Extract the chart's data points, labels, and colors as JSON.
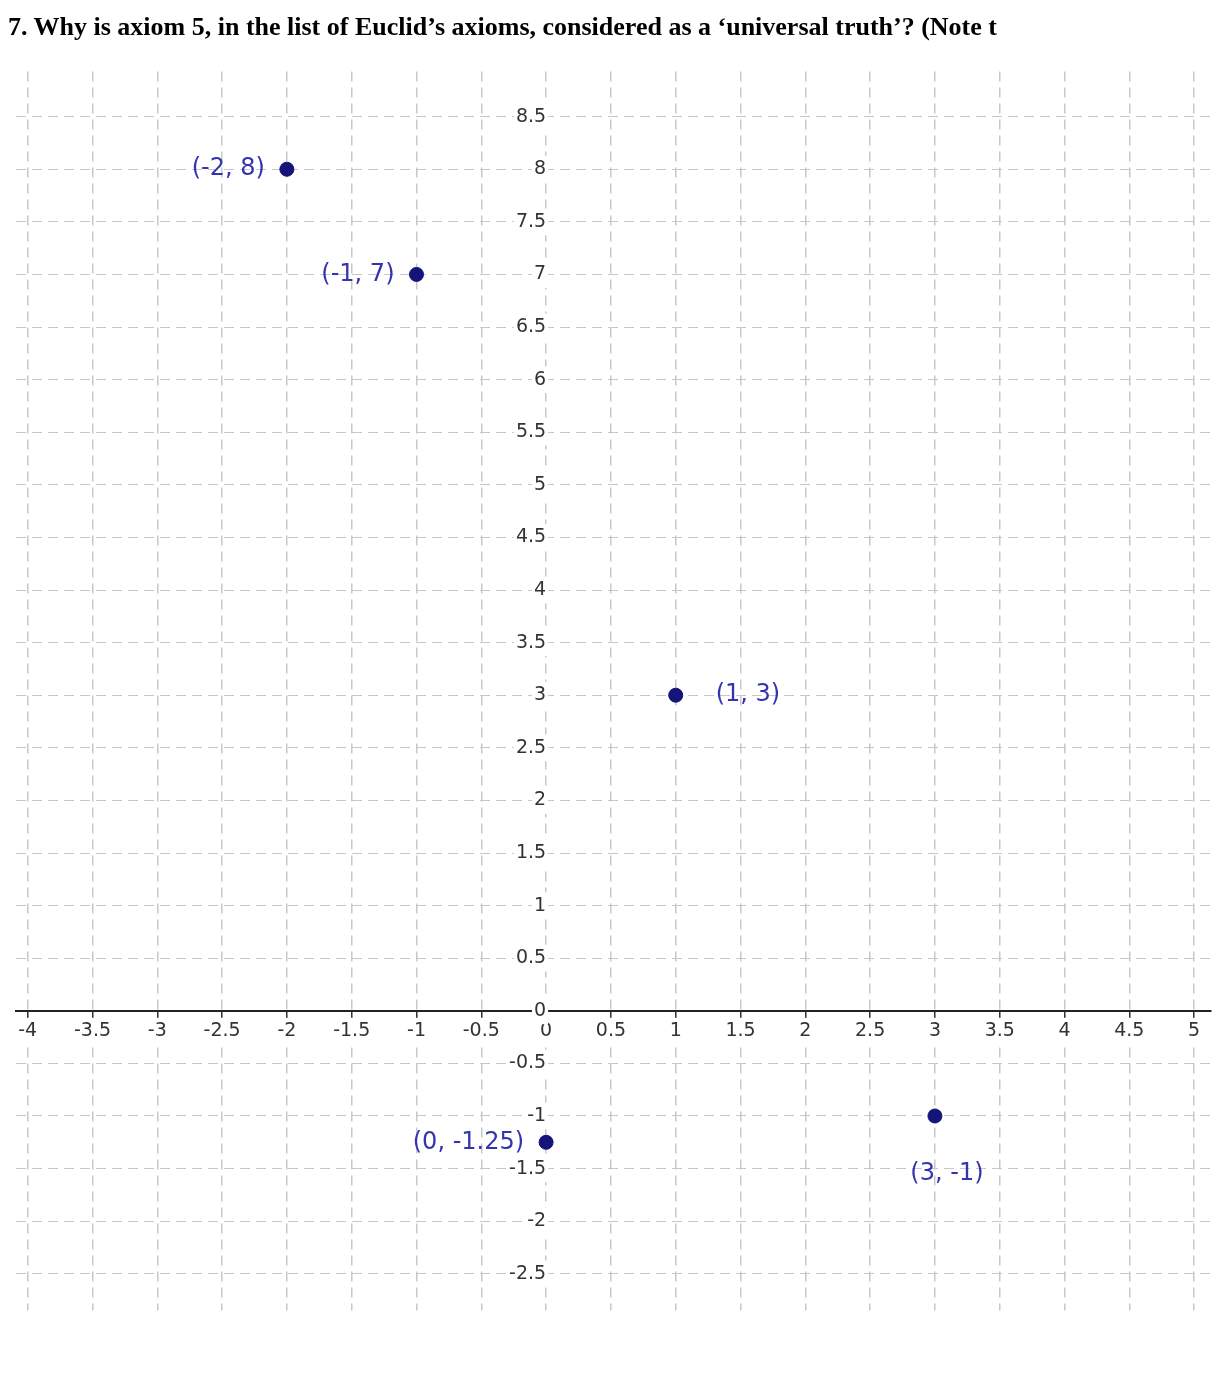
{
  "chart_data": {
    "type": "scatter",
    "annotations": [
      "7. Why is axiom 5, in the list of Euclid’s axioms, considered as a ‘universal truth’? (Note t"
    ],
    "x": [
      -2,
      -1,
      1,
      0,
      3
    ],
    "series": [
      {
        "color": "#14147a",
        "values": [
          8,
          7,
          3,
          -1.25,
          -1
        ],
        "value_labels": [
          "(-2, 8)",
          "(-1, 7)",
          "(1, 3)",
          "(0, -1.25)",
          "(3, -1)"
        ]
      }
    ],
    "xlim": [
      -4.09,
      5.13
    ],
    "ylim": [
      -2.85,
      8.93
    ],
    "xticks": [
      -4,
      -3.5,
      -3,
      -2.5,
      -2,
      -1.5,
      -1,
      -0.5,
      0,
      0.5,
      1,
      1.5,
      2,
      2.5,
      3,
      3.5,
      4,
      4.5,
      5
    ],
    "yticks": [
      -2.5,
      -2,
      -1.5,
      -1,
      -0.5,
      0,
      0.5,
      1,
      1.5,
      2,
      2.5,
      3,
      3.5,
      4,
      4.5,
      5,
      5.5,
      6,
      6.5,
      7,
      7.5,
      8,
      8.5
    ],
    "grid": true,
    "marker": "circle",
    "legend": false
  }
}
